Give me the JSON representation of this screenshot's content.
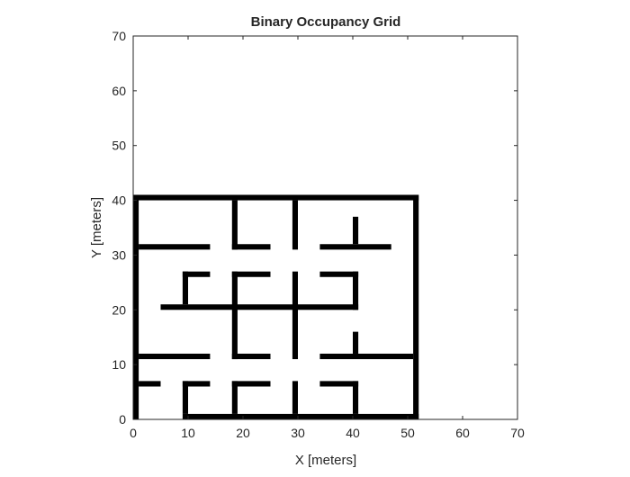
{
  "chart_data": {
    "type": "heatmap",
    "title": "Binary Occupancy Grid",
    "xlabel": "X [meters]",
    "ylabel": "Y [meters]",
    "xlim": [
      0,
      70
    ],
    "ylim": [
      0,
      70
    ],
    "xticks": [
      "0",
      "10",
      "20",
      "30",
      "40",
      "50",
      "60",
      "70"
    ],
    "yticks": [
      "0",
      "10",
      "20",
      "30",
      "40",
      "50",
      "60",
      "70"
    ],
    "grid": false,
    "occupied_color": "#000000",
    "free_color": "#ffffff",
    "occupied_cells_xrange_yrange": [
      [
        0,
        1,
        0,
        41
      ],
      [
        0,
        52,
        40,
        41
      ],
      [
        51,
        52,
        0,
        41
      ],
      [
        9,
        52,
        0,
        1
      ],
      [
        1,
        14,
        31,
        32
      ],
      [
        18,
        25,
        31,
        32
      ],
      [
        18,
        19,
        31,
        40
      ],
      [
        29,
        30,
        31,
        40
      ],
      [
        34,
        47,
        31,
        32
      ],
      [
        40,
        41,
        32,
        37
      ],
      [
        9,
        14,
        26,
        27
      ],
      [
        9,
        10,
        21,
        27
      ],
      [
        18,
        25,
        26,
        27
      ],
      [
        18,
        19,
        11,
        27
      ],
      [
        29,
        30,
        11,
        27
      ],
      [
        34,
        41,
        26,
        27
      ],
      [
        40,
        41,
        20,
        27
      ],
      [
        5,
        41,
        20,
        21
      ],
      [
        40,
        41,
        12,
        16
      ],
      [
        1,
        14,
        11,
        12
      ],
      [
        18,
        25,
        11,
        12
      ],
      [
        34,
        51,
        11,
        12
      ],
      [
        1,
        5,
        6,
        7
      ],
      [
        9,
        14,
        6,
        7
      ],
      [
        9,
        10,
        1,
        7
      ],
      [
        18,
        25,
        6,
        7
      ],
      [
        18,
        19,
        1,
        7
      ],
      [
        29,
        30,
        1,
        7
      ],
      [
        34,
        41,
        6,
        7
      ],
      [
        40,
        41,
        1,
        7
      ]
    ]
  }
}
